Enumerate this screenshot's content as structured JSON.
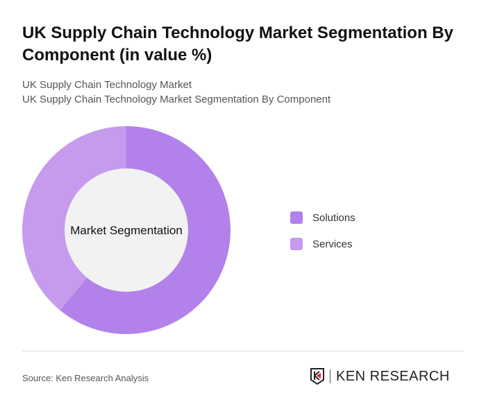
{
  "title": "UK Supply Chain Technology Market Segmentation By Component (in value %)",
  "subtitle1": "UK Supply Chain Technology Market",
  "subtitle2": "UK Supply Chain Technology Market Segmentation By Component",
  "source": "Source: Ken Research Analysis",
  "logo_text": "KEN RESEARCH",
  "chart_data": {
    "type": "pie",
    "donut": true,
    "center_label": "Market Segmentation",
    "categories": [
      "Solutions",
      "Services"
    ],
    "values": [
      61,
      39
    ],
    "colors": [
      "#b381ea",
      "#c69bee"
    ],
    "legend_position": "right"
  }
}
